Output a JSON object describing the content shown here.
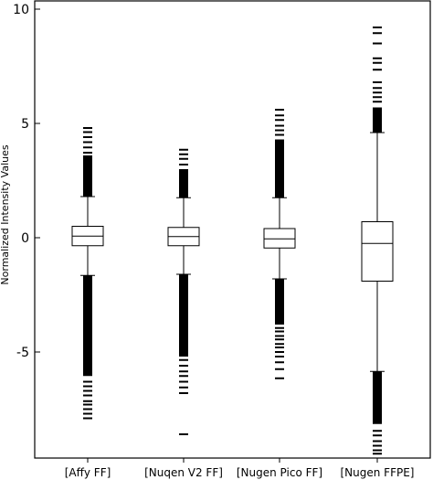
{
  "chart_data": {
    "type": "box",
    "title": "",
    "xlabel": "",
    "ylabel": "Normalized Intensity Values",
    "ylim": [
      -9.6,
      10
    ],
    "yticks": [
      10,
      5,
      0,
      -5
    ],
    "grid": false,
    "legend": "none",
    "categories": [
      "[Affy FF]",
      "[Nuqen V2 FF]",
      "[Nugen Pico FF]",
      "[Nugen FFPE]"
    ],
    "boxes": [
      {
        "q1": -0.35,
        "median": 0.07,
        "q3": 0.5,
        "whisker_low": -1.65,
        "whisker_high": 1.8,
        "outlier_band_high": [
          1.8,
          3.6
        ],
        "outlier_band_low": [
          -6.05,
          -1.65
        ],
        "outliers_high": [
          3.72,
          3.95,
          4.18,
          4.4,
          4.62,
          4.8
        ],
        "outliers_low": [
          -6.3,
          -6.5,
          -6.7,
          -6.9,
          -7.15,
          -7.3,
          -7.5,
          -7.7,
          -7.9
        ]
      },
      {
        "q1": -0.35,
        "median": 0.05,
        "q3": 0.45,
        "whisker_low": -1.6,
        "whisker_high": 1.75,
        "outlier_band_high": [
          1.75,
          3.0
        ],
        "outlier_band_low": [
          -5.2,
          -1.6
        ],
        "outliers_high": [
          3.2,
          3.45,
          3.65,
          3.85
        ],
        "outliers_low": [
          -5.35,
          -5.6,
          -5.85,
          -6.05,
          -6.3,
          -6.55,
          -6.8,
          -8.6
        ]
      },
      {
        "q1": -0.45,
        "median": -0.05,
        "q3": 0.4,
        "whisker_low": -1.8,
        "whisker_high": 1.75,
        "outlier_band_high": [
          1.75,
          4.3
        ],
        "outlier_band_low": [
          -3.8,
          -1.8
        ],
        "outliers_high": [
          4.5,
          4.7,
          4.9,
          5.15,
          5.35,
          5.6
        ],
        "outliers_low": [
          -3.95,
          -4.1,
          -4.3,
          -4.45,
          -4.65,
          -4.8,
          -5.0,
          -5.2,
          -5.45,
          -5.75,
          -6.15
        ]
      },
      {
        "q1": -1.9,
        "median": -0.25,
        "q3": 0.7,
        "whisker_low": -5.85,
        "whisker_high": 4.6,
        "outlier_band_high": [
          4.6,
          5.7
        ],
        "outlier_band_low": [
          -8.15,
          -5.85
        ],
        "outliers_high": [
          5.95,
          6.15,
          6.35,
          6.55,
          6.8,
          7.35,
          7.65,
          7.85,
          8.5,
          8.95,
          9.2
        ],
        "outliers_low": [
          -8.45,
          -8.65,
          -8.9,
          -9.1,
          -9.3,
          -9.45
        ]
      }
    ]
  }
}
